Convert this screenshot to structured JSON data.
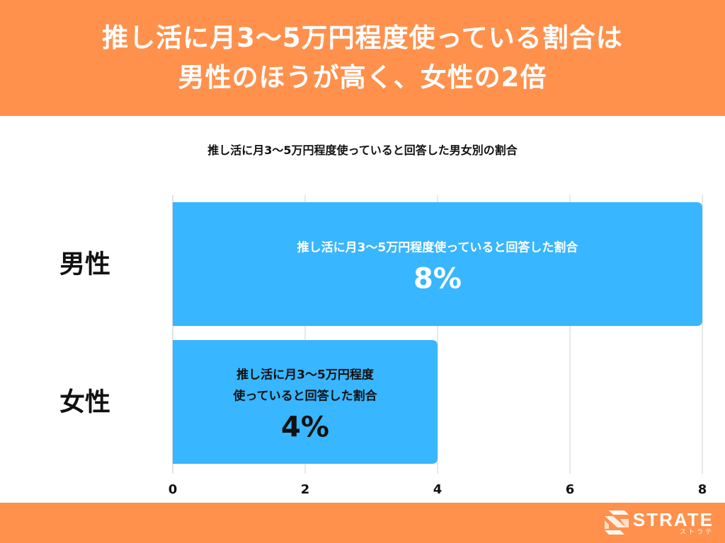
{
  "header": {
    "title_line1": "推し活に月3〜5万円程度使っている割合は",
    "title_line2": "男性のほうが高く、女性の2倍"
  },
  "footer": {
    "logo_text": "STRATE",
    "logo_subtext": "ストラテ"
  },
  "colors": {
    "header_bg": "#FF914D",
    "bar": "#38B6FF",
    "footer_bg": "#FF914D"
  },
  "chart_data": {
    "type": "bar",
    "orientation": "horizontal",
    "title": "推し活に月3〜5万円程度使っていると回答した男女別の割合",
    "categories": [
      "男性",
      "女性"
    ],
    "values": [
      8,
      4
    ],
    "value_labels": [
      "8%",
      "4%"
    ],
    "bar_labels": [
      [
        "推し活に月3〜5万円程度使っていると回答した割合"
      ],
      [
        "推し活に月3〜5万円程度",
        "使っていると回答した割合"
      ]
    ],
    "label_colors": [
      "#ffffff",
      "#111111"
    ],
    "xlim": [
      0,
      8
    ],
    "x_ticks": [
      0,
      2,
      4,
      6,
      8
    ],
    "grid": true,
    "legend": "none"
  }
}
